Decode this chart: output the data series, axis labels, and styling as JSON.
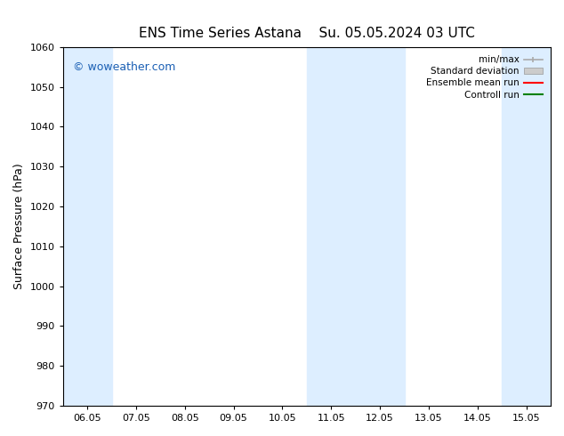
{
  "title_left": "ENS Time Series Astana",
  "title_right": "Su. 05.05.2024 03 UTC",
  "ylabel": "Surface Pressure (hPa)",
  "ylim": [
    970,
    1060
  ],
  "yticks": [
    970,
    980,
    990,
    1000,
    1010,
    1020,
    1030,
    1040,
    1050,
    1060
  ],
  "xtick_labels": [
    "06.05",
    "07.05",
    "08.05",
    "09.05",
    "10.05",
    "11.05",
    "12.05",
    "13.05",
    "14.05",
    "15.05"
  ],
  "xtick_positions": [
    1,
    2,
    3,
    4,
    5,
    6,
    7,
    8,
    9,
    10
  ],
  "xlim": [
    0.5,
    10.5
  ],
  "shaded_bands": [
    {
      "x_start": 0.5,
      "x_end": 1.5,
      "color": "#ddeeff"
    },
    {
      "x_start": 5.5,
      "x_end": 7.5,
      "color": "#ddeeff"
    },
    {
      "x_start": 9.5,
      "x_end": 10.5,
      "color": "#ddeeff"
    }
  ],
  "watermark": "© woweather.com",
  "watermark_color": "#1a5fb4",
  "watermark_fontsize": 9,
  "legend_items": [
    {
      "label": "min/max",
      "color": "#aaaaaa",
      "style": "errorbar"
    },
    {
      "label": "Standard deviation",
      "color": "#cccccc",
      "style": "band"
    },
    {
      "label": "Ensemble mean run",
      "color": "#ff0000",
      "style": "line"
    },
    {
      "label": "Controll run",
      "color": "#008000",
      "style": "line"
    }
  ],
  "background_color": "#ffffff",
  "plot_bg_color": "#ffffff",
  "title_fontsize": 11,
  "axis_label_fontsize": 9,
  "tick_fontsize": 8
}
